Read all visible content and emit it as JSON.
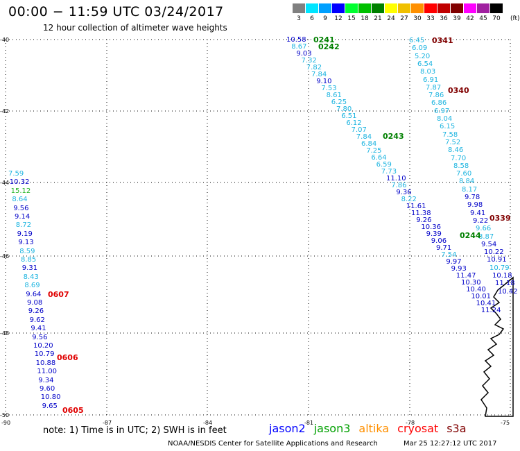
{
  "title": "00:00 − 11:59 UTC 03/24/2017",
  "subtitle": "12 hour collection of altimeter wave heights",
  "colorbar": {
    "unit": "(ft)",
    "entries": [
      {
        "label": "3",
        "color": "#808080"
      },
      {
        "label": "6",
        "color": "#00e5ff"
      },
      {
        "label": "9",
        "color": "#00a0ff"
      },
      {
        "label": "12",
        "color": "#0000ff"
      },
      {
        "label": "15",
        "color": "#00ff30"
      },
      {
        "label": "18",
        "color": "#00c000"
      },
      {
        "label": "21",
        "color": "#008000"
      },
      {
        "label": "24",
        "color": "#ffff00"
      },
      {
        "label": "27",
        "color": "#f0c000"
      },
      {
        "label": "30",
        "color": "#ff9000"
      },
      {
        "label": "33",
        "color": "#ff0000"
      },
      {
        "label": "36",
        "color": "#c00000"
      },
      {
        "label": "39",
        "color": "#800000"
      },
      {
        "label": "42",
        "color": "#ff00ff"
      },
      {
        "label": "45",
        "color": "#a020a0"
      },
      {
        "label": "70",
        "color": "#000000"
      }
    ]
  },
  "axes": {
    "lat_labels": [
      "-40",
      "-42",
      "-44",
      "-46",
      "-48",
      "-50"
    ],
    "lon_labels": [
      "-90",
      "-87",
      "-84",
      "-81",
      "-78",
      "-75"
    ]
  },
  "colors": {
    "cyan": "#1cb4e0",
    "blue": "#0000c8",
    "green": "#22b422",
    "darkgreen": "#008000",
    "red": "#e00000",
    "darkred": "#800000"
  },
  "tracks": {
    "left": [
      "7.59",
      "10.32",
      "15.12",
      "8.64",
      "9.56",
      "9.14",
      "8.72",
      "9.19",
      "9.13",
      "8.59",
      "8.85",
      "9.31",
      "8.43",
      "8.69",
      "9.64",
      "9.08",
      "9.26",
      "9.62",
      "9.41",
      "9.56",
      "10.20",
      "10.79",
      "10.88",
      "11.00",
      "9.34",
      "9.60",
      "10.80",
      "9.65"
    ],
    "left_colors": [
      "cyan",
      "blue",
      "green",
      "cyan",
      "blue",
      "blue",
      "cyan",
      "blue",
      "blue",
      "cyan",
      "cyan",
      "blue",
      "cyan",
      "cyan",
      "blue",
      "blue",
      "blue",
      "blue",
      "blue",
      "blue",
      "blue",
      "blue",
      "blue",
      "blue",
      "blue",
      "blue",
      "blue",
      "blue"
    ],
    "middle": [
      "10.58",
      "8.67",
      "9.03",
      "7.32",
      "7.82",
      "7.84",
      "9.10",
      "7.53",
      "8.61",
      "6.25",
      "7.80",
      "6.51",
      "6.12",
      "7.07",
      "7.84",
      "6.84",
      "7.25",
      "6.64",
      "6.59",
      "7.73",
      "11.10",
      "7.86",
      "9.36",
      "8.22",
      "11.61",
      "11.38",
      "9.26",
      "10.36",
      "9.39",
      "9.06",
      "9.71",
      "7.54",
      "9.97",
      "9.93",
      "11.47",
      "10.30",
      "10.40",
      "10.01",
      "10.41",
      "11.24"
    ],
    "middle_colors": [
      "blue",
      "cyan",
      "blue",
      "cyan",
      "cyan",
      "cyan",
      "blue",
      "cyan",
      "cyan",
      "cyan",
      "cyan",
      "cyan",
      "cyan",
      "cyan",
      "cyan",
      "cyan",
      "cyan",
      "cyan",
      "cyan",
      "cyan",
      "blue",
      "cyan",
      "blue",
      "cyan",
      "blue",
      "blue",
      "blue",
      "blue",
      "blue",
      "blue",
      "blue",
      "cyan",
      "blue",
      "blue",
      "blue",
      "blue",
      "blue",
      "blue",
      "blue",
      "blue"
    ],
    "right": [
      "6.45",
      "6.09",
      "5.20",
      "6.54",
      "8.03",
      "6.91",
      "7.87",
      "7.86",
      "6.86",
      "6.97",
      "8.04",
      "6.15",
      "7.58",
      "7.52",
      "8.46",
      "7.70",
      "8.58",
      "7.60",
      "8.84",
      "8.17",
      "9.78",
      "9.98",
      "9.41",
      "9.22",
      "9.66",
      "8.87",
      "9.54",
      "10.22",
      "10.91",
      "10.79",
      "10.18",
      "11.18",
      "10.42"
    ],
    "right_colors": [
      "cyan",
      "cyan",
      "cyan",
      "cyan",
      "cyan",
      "cyan",
      "cyan",
      "cyan",
      "cyan",
      "cyan",
      "cyan",
      "cyan",
      "cyan",
      "cyan",
      "cyan",
      "cyan",
      "cyan",
      "cyan",
      "cyan",
      "cyan",
      "blue",
      "blue",
      "blue",
      "blue",
      "cyan",
      "cyan",
      "blue",
      "blue",
      "blue",
      "cyan",
      "blue",
      "blue",
      "blue"
    ]
  },
  "passes": [
    {
      "label": "0241",
      "color": "darkgreen"
    },
    {
      "label": "0242",
      "color": "darkgreen"
    },
    {
      "label": "0243",
      "color": "darkgreen"
    },
    {
      "label": "0244",
      "color": "darkgreen"
    },
    {
      "label": "0341",
      "color": "darkred"
    },
    {
      "label": "0340",
      "color": "darkred"
    },
    {
      "label": "0339",
      "color": "darkred"
    },
    {
      "label": "0607",
      "color": "red"
    },
    {
      "label": "0606",
      "color": "red"
    },
    {
      "label": "0605",
      "color": "red"
    }
  ],
  "note": "note:  1) Time is in UTC;  2) SWH is in feet",
  "legend": [
    {
      "label": "jason2",
      "color": "#0000ff"
    },
    {
      "label": "jason3",
      "color": "#00a000"
    },
    {
      "label": "altika",
      "color": "#ff9000"
    },
    {
      "label": "cryosat",
      "color": "#ff0000"
    },
    {
      "label": "s3a",
      "color": "#800000"
    }
  ],
  "footer_left": "NOAA/NESDIS Center for Satellite Applications and Research",
  "footer_right": "Mar 25 12:27:12 UTC 2017"
}
